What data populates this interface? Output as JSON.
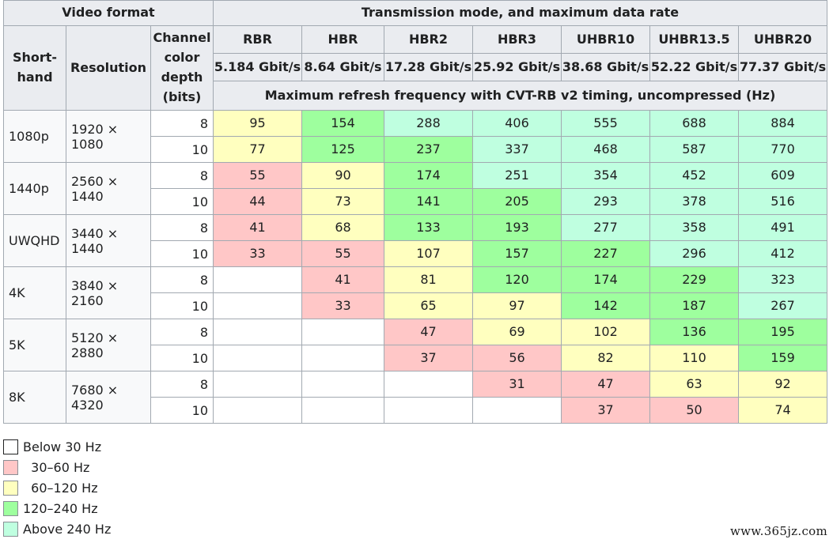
{
  "header": {
    "video_format": "Video format",
    "transmission": "Transmission mode, and maximum data rate",
    "shorthand": "Short-hand",
    "resolution": "Resolution",
    "depth": "Channel color depth (bits)",
    "max_refresh": "Maximum refresh frequency with CVT-RB v2 timing, uncompressed (Hz)"
  },
  "modes": [
    {
      "name": "RBR",
      "rate": "5.184 Gbit/s"
    },
    {
      "name": "HBR",
      "rate": "8.64 Gbit/s"
    },
    {
      "name": "HBR2",
      "rate": "17.28 Gbit/s"
    },
    {
      "name": "HBR3",
      "rate": "25.92 Gbit/s"
    },
    {
      "name": "UHBR10",
      "rate": "38.68 Gbit/s"
    },
    {
      "name": "UHBR13.5",
      "rate": "52.22 Gbit/s"
    },
    {
      "name": "UHBR20",
      "rate": "77.37 Gbit/s"
    }
  ],
  "formats": [
    {
      "shorthand": "1080p",
      "resolution": "1920 × 1080",
      "rows": [
        {
          "depth": "8",
          "values": [
            "95",
            "154",
            "288",
            "406",
            "555",
            "688",
            "884"
          ],
          "levels": [
            "y",
            "g",
            "t",
            "t",
            "t",
            "t",
            "t"
          ]
        },
        {
          "depth": "10",
          "values": [
            "77",
            "125",
            "237",
            "337",
            "468",
            "587",
            "770"
          ],
          "levels": [
            "y",
            "g",
            "g",
            "t",
            "t",
            "t",
            "t"
          ]
        }
      ]
    },
    {
      "shorthand": "1440p",
      "resolution": "2560 × 1440",
      "rows": [
        {
          "depth": "8",
          "values": [
            "55",
            "90",
            "174",
            "251",
            "354",
            "452",
            "609"
          ],
          "levels": [
            "r",
            "y",
            "g",
            "t",
            "t",
            "t",
            "t"
          ]
        },
        {
          "depth": "10",
          "values": [
            "44",
            "73",
            "141",
            "205",
            "293",
            "378",
            "516"
          ],
          "levels": [
            "r",
            "y",
            "g",
            "g",
            "t",
            "t",
            "t"
          ]
        }
      ]
    },
    {
      "shorthand": "UWQHD",
      "resolution": "3440 × 1440",
      "rows": [
        {
          "depth": "8",
          "values": [
            "41",
            "68",
            "133",
            "193",
            "277",
            "358",
            "491"
          ],
          "levels": [
            "r",
            "y",
            "g",
            "g",
            "t",
            "t",
            "t"
          ]
        },
        {
          "depth": "10",
          "values": [
            "33",
            "55",
            "107",
            "157",
            "227",
            "296",
            "412"
          ],
          "levels": [
            "r",
            "r",
            "y",
            "g",
            "g",
            "t",
            "t"
          ]
        }
      ]
    },
    {
      "shorthand": "4K",
      "resolution": "3840 × 2160",
      "rows": [
        {
          "depth": "8",
          "values": [
            "",
            "41",
            "81",
            "120",
            "174",
            "229",
            "323"
          ],
          "levels": [
            "w",
            "r",
            "y",
            "g",
            "g",
            "g",
            "t"
          ]
        },
        {
          "depth": "10",
          "values": [
            "",
            "33",
            "65",
            "97",
            "142",
            "187",
            "267"
          ],
          "levels": [
            "w",
            "r",
            "y",
            "y",
            "g",
            "g",
            "t"
          ]
        }
      ]
    },
    {
      "shorthand": "5K",
      "resolution": "5120 × 2880",
      "rows": [
        {
          "depth": "8",
          "values": [
            "",
            "",
            "47",
            "69",
            "102",
            "136",
            "195"
          ],
          "levels": [
            "w",
            "w",
            "r",
            "y",
            "y",
            "g",
            "g"
          ]
        },
        {
          "depth": "10",
          "values": [
            "",
            "",
            "37",
            "56",
            "82",
            "110",
            "159"
          ],
          "levels": [
            "w",
            "w",
            "r",
            "r",
            "y",
            "y",
            "g"
          ]
        }
      ]
    },
    {
      "shorthand": "8K",
      "resolution": "7680 × 4320",
      "rows": [
        {
          "depth": "8",
          "values": [
            "",
            "",
            "",
            "31",
            "47",
            "63",
            "92"
          ],
          "levels": [
            "w",
            "w",
            "w",
            "r",
            "r",
            "y",
            "y"
          ]
        },
        {
          "depth": "10",
          "values": [
            "",
            "",
            "",
            "",
            "37",
            "50",
            "74"
          ],
          "levels": [
            "w",
            "w",
            "w",
            "w",
            "r",
            "r",
            "y"
          ]
        }
      ]
    }
  ],
  "legend": [
    {
      "label": "Below 30 Hz",
      "level": "w"
    },
    {
      "label": "  30–60 Hz",
      "level": "r"
    },
    {
      "label": "  60–120 Hz",
      "level": "y"
    },
    {
      "label": "120–240 Hz",
      "level": "g"
    },
    {
      "label": "Above 240 Hz",
      "level": "t"
    }
  ],
  "colors": {
    "w": "#ffffff",
    "r": "#ffc7c7",
    "y": "#ffffbf",
    "g": "#9eff9e",
    "t": "#bfffe0",
    "header_bg": "#eaecf0",
    "border": "#a2a9b1"
  },
  "watermark": "www.365jz.com"
}
